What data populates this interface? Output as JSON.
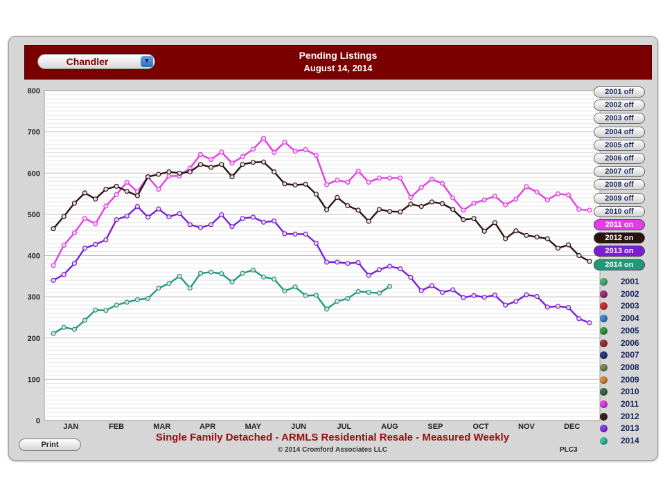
{
  "header": {
    "city": "Chandler",
    "title": "Pending Listings",
    "subtitle": "August 14, 2014"
  },
  "toggles": [
    {
      "label": "2001 off",
      "state": "off"
    },
    {
      "label": "2002 off",
      "state": "off"
    },
    {
      "label": "2003 off",
      "state": "off"
    },
    {
      "label": "2004 off",
      "state": "off"
    },
    {
      "label": "2005 off",
      "state": "off"
    },
    {
      "label": "2006 off",
      "state": "off"
    },
    {
      "label": "2007 off",
      "state": "off"
    },
    {
      "label": "2008 off",
      "state": "off"
    },
    {
      "label": "2009 off",
      "state": "off"
    },
    {
      "label": "2010 off",
      "state": "off"
    },
    {
      "label": "2011 on",
      "state": "on",
      "color": "#e63ce6"
    },
    {
      "label": "2012 on",
      "state": "on",
      "color": "#2a1410"
    },
    {
      "label": "2013 on",
      "state": "on",
      "color": "#7a1ed6"
    },
    {
      "label": "2014 on",
      "state": "on",
      "color": "#1e9a7a"
    }
  ],
  "legend": [
    {
      "label": "2001",
      "color": "#4caf7a"
    },
    {
      "label": "2002",
      "color": "#a0307a"
    },
    {
      "label": "2003",
      "color": "#d03030"
    },
    {
      "label": "2004",
      "color": "#3a8ad6"
    },
    {
      "label": "2005",
      "color": "#3a9a4a"
    },
    {
      "label": "2006",
      "color": "#a03030"
    },
    {
      "label": "2007",
      "color": "#2a3a7a"
    },
    {
      "label": "2008",
      "color": "#7a8a5a"
    },
    {
      "label": "2009",
      "color": "#d68a3a"
    },
    {
      "label": "2010",
      "color": "#3a6a4a"
    },
    {
      "label": "2011",
      "color": "#e63ce6"
    },
    {
      "label": "2012",
      "color": "#3a2420"
    },
    {
      "label": "2013",
      "color": "#8a3ae6"
    },
    {
      "label": "2014",
      "color": "#3abf9a"
    }
  ],
  "footer": {
    "title": "Single Family Detached - ARMLS Residential Resale - Measured Weekly",
    "copyright": "© 2014 Cromford Associates LLC",
    "code": "PLC3",
    "print_label": "Print"
  },
  "chart_data": {
    "type": "line",
    "xlabel": "",
    "ylabel": "",
    "ylim": [
      0,
      800
    ],
    "yticks": [
      0,
      100,
      200,
      300,
      400,
      500,
      600,
      700,
      800
    ],
    "months": [
      "JAN",
      "FEB",
      "MAR",
      "APR",
      "MAY",
      "JUN",
      "JUL",
      "AUG",
      "SEP",
      "OCT",
      "NOV",
      "DEC"
    ],
    "weeks": 52,
    "grid": "horizontal",
    "legend": "right",
    "series": [
      {
        "name": "2011",
        "color": "#e63ce6",
        "values": [
          376,
          425,
          455,
          490,
          477,
          520,
          548,
          578,
          555,
          591,
          561,
          593,
          593,
          612,
          645,
          633,
          651,
          624,
          640,
          658,
          684,
          650,
          675,
          653,
          657,
          643,
          572,
          583,
          578,
          605,
          578,
          588,
          588,
          588,
          541,
          565,
          585,
          575,
          540,
          510,
          527,
          535,
          544,
          523,
          537,
          567,
          554,
          535,
          550,
          547,
          512,
          510
        ]
      },
      {
        "name": "2012",
        "color": "#2a1410",
        "values": [
          465,
          495,
          527,
          552,
          537,
          561,
          568,
          556,
          545,
          591,
          597,
          603,
          600,
          603,
          621,
          614,
          621,
          591,
          621,
          626,
          627,
          603,
          574,
          571,
          573,
          549,
          511,
          541,
          521,
          510,
          483,
          512,
          507,
          506,
          525,
          519,
          530,
          526,
          512,
          487,
          490,
          459,
          480,
          441,
          460,
          449,
          445,
          441,
          418,
          426,
          400,
          386
        ]
      },
      {
        "name": "2013",
        "color": "#7a1ed6",
        "values": [
          340,
          354,
          381,
          418,
          427,
          438,
          487,
          496,
          519,
          493,
          513,
          494,
          502,
          475,
          468,
          475,
          499,
          470,
          490,
          493,
          481,
          484,
          453,
          452,
          452,
          430,
          384,
          384,
          381,
          383,
          352,
          366,
          374,
          368,
          347,
          315,
          327,
          311,
          317,
          298,
          303,
          299,
          304,
          280,
          289,
          305,
          301,
          275,
          277,
          274,
          247,
          237
        ]
      },
      {
        "name": "2014",
        "color": "#1e9a7a",
        "values": [
          211,
          226,
          221,
          243,
          268,
          267,
          280,
          287,
          293,
          296,
          321,
          332,
          350,
          321,
          357,
          360,
          356,
          336,
          357,
          365,
          348,
          343,
          314,
          324,
          303,
          304,
          270,
          289,
          296,
          313,
          311,
          309,
          325
        ]
      }
    ]
  }
}
